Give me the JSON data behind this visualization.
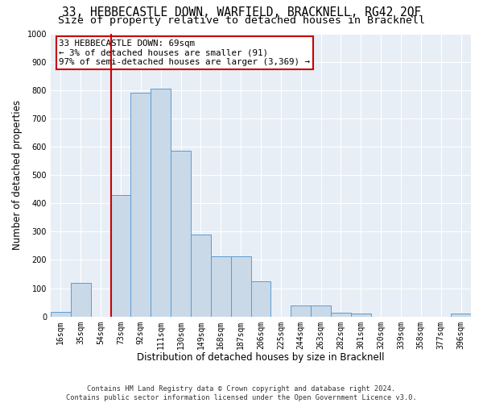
{
  "title": "33, HEBBECASTLE DOWN, WARFIELD, BRACKNELL, RG42 2QF",
  "subtitle": "Size of property relative to detached houses in Bracknell",
  "xlabel": "Distribution of detached houses by size in Bracknell",
  "ylabel": "Number of detached properties",
  "categories": [
    "16sqm",
    "35sqm",
    "54sqm",
    "73sqm",
    "92sqm",
    "111sqm",
    "130sqm",
    "149sqm",
    "168sqm",
    "187sqm",
    "206sqm",
    "225sqm",
    "244sqm",
    "263sqm",
    "282sqm",
    "301sqm",
    "320sqm",
    "339sqm",
    "358sqm",
    "377sqm",
    "396sqm"
  ],
  "values": [
    17,
    120,
    0,
    430,
    790,
    805,
    585,
    290,
    212,
    212,
    125,
    0,
    40,
    40,
    13,
    12,
    0,
    0,
    0,
    0,
    12
  ],
  "bar_color": "#c9d9e8",
  "bar_edge_color": "#5b9bd5",
  "vline_x_index": 3,
  "vline_color": "#cc0000",
  "annotation_text": "33 HEBBECASTLE DOWN: 69sqm\n← 3% of detached houses are smaller (91)\n97% of semi-detached houses are larger (3,369) →",
  "annotation_box_color": "#cc0000",
  "footer_line1": "Contains HM Land Registry data © Crown copyright and database right 2024.",
  "footer_line2": "Contains public sector information licensed under the Open Government Licence v3.0.",
  "ylim": [
    0,
    1000
  ],
  "yticks": [
    0,
    100,
    200,
    300,
    400,
    500,
    600,
    700,
    800,
    900,
    1000
  ],
  "background_color": "#e8eef5",
  "grid_color": "#ffffff",
  "title_fontsize": 10.5,
  "subtitle_fontsize": 9.5,
  "tick_fontsize": 7,
  "ylabel_fontsize": 8.5,
  "xlabel_fontsize": 8.5,
  "annotation_fontsize": 7.8,
  "footer_fontsize": 6.2
}
